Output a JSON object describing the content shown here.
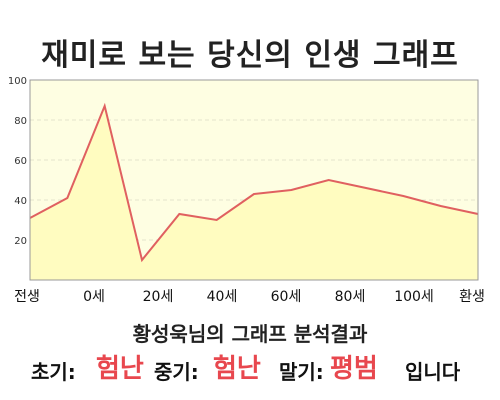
{
  "title": "재미로 보는 당신의 인생 그래프",
  "chart_data": {
    "type": "area",
    "x": [
      0,
      1,
      2,
      3,
      4,
      5,
      6,
      7,
      8,
      9,
      10,
      11,
      12
    ],
    "values": [
      31,
      41,
      87,
      10,
      33,
      30,
      43,
      45,
      50,
      46,
      42,
      37,
      33
    ],
    "ylim": [
      0,
      100
    ],
    "yticks": [
      100,
      80,
      60,
      40,
      20
    ],
    "xtick_labels": [
      "전생",
      "0세",
      "20세",
      "40세",
      "60세",
      "80세",
      "100세",
      "환생"
    ],
    "grid": true,
    "colors": {
      "line": "#e06060",
      "fill": "#fffcc0",
      "plot_bg": "#fefee2",
      "grid": "#e4e4cc"
    }
  },
  "summary": {
    "heading": "황성욱님의 그래프 분석결과",
    "early_label": "초기:",
    "early_value": "험난",
    "middle_label": "중기:",
    "middle_value": "험난",
    "late_label": "말기:",
    "late_value": "평범",
    "ending": "입니다"
  }
}
